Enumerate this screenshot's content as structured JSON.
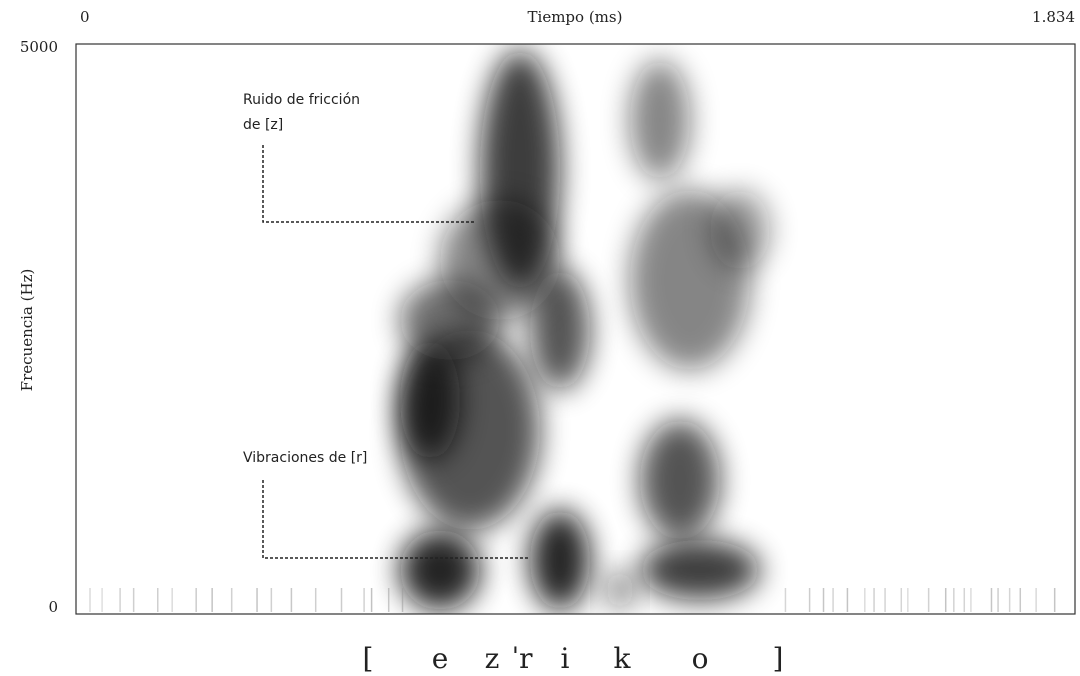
{
  "chart_data": {
    "type": "spectrogram",
    "xlabel": "Tiempo (ms)",
    "ylabel": "Frecuencia (Hz)",
    "xlim": [
      0,
      1834
    ],
    "xticks": [
      0,
      {
        "value": 1834,
        "label": "1.834"
      }
    ],
    "ylim": [
      0,
      5000
    ],
    "yticks": [
      0,
      5000
    ],
    "annotations": [
      {
        "lines": [
          "Ruido de fricción",
          "de [z]"
        ]
      },
      {
        "lines": [
          "Vibraciones de [r]"
        ]
      }
    ],
    "transcription": [
      "[",
      "e",
      "z",
      "ˈr",
      "i",
      "k",
      "o",
      "]"
    ]
  }
}
